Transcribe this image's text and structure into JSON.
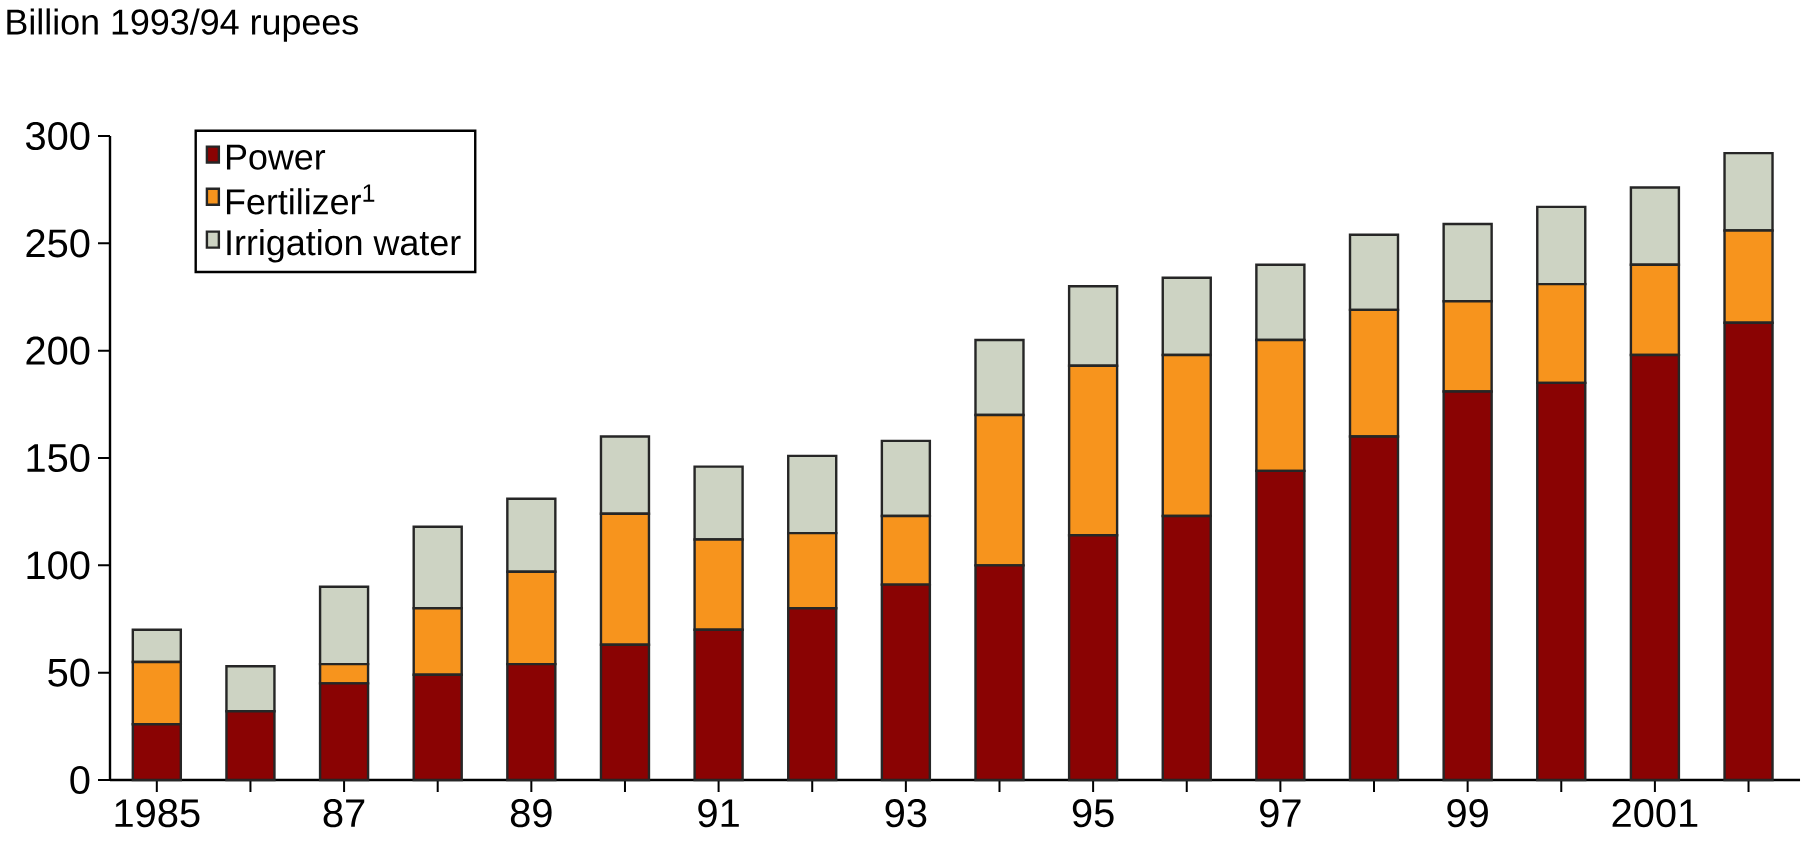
{
  "chart_data": {
    "type": "bar",
    "stacked": true,
    "ylabel": "Billion 1993/94 rupees",
    "categories": [
      "1985",
      null,
      "87",
      null,
      "89",
      null,
      "91",
      null,
      "93",
      null,
      "95",
      null,
      "97",
      null,
      "99",
      null,
      "2001",
      null
    ],
    "series": [
      {
        "name": "Power",
        "color": "#8a0303",
        "values": [
          26,
          32,
          45,
          49,
          54,
          63,
          70,
          80,
          91,
          100,
          114,
          123,
          144,
          160,
          181,
          185,
          198,
          213
        ]
      },
      {
        "name": "Fertilizer$^{1}$",
        "color": "#f7941d",
        "values": [
          29,
          0,
          9,
          31,
          43,
          61,
          42,
          35,
          32,
          70,
          79,
          75,
          61,
          59,
          42,
          46,
          42,
          43
        ]
      },
      {
        "name": "Irrigation water",
        "color": "#cdd3c3",
        "values": [
          15,
          21,
          36,
          38,
          34,
          36,
          34,
          36,
          35,
          35,
          37,
          36,
          35,
          35,
          36,
          36,
          36,
          36
        ]
      }
    ],
    "ylim": [
      0,
      300
    ],
    "yticks": [
      0,
      50,
      100,
      150,
      200,
      250,
      300
    ],
    "grid": false,
    "legend": "top left"
  }
}
